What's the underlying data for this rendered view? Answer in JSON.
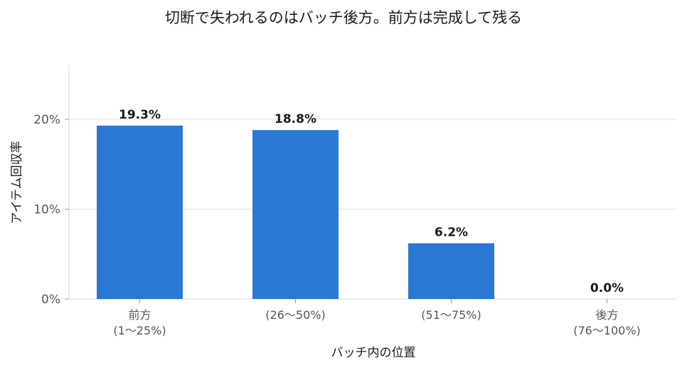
{
  "chart_data": {
    "type": "bar",
    "title": "切断で失われるのはバッチ後方。前方は完成して残る",
    "xlabel": "バッチ内の位置",
    "ylabel": "アイテム回収率",
    "categories": [
      [
        "前方",
        "(1〜25%)"
      ],
      [
        "(26〜50%)"
      ],
      [
        "(51〜75%)"
      ],
      [
        "後方",
        "(76〜100%)"
      ]
    ],
    "values": [
      19.3,
      18.8,
      6.2,
      0.0
    ],
    "data_labels": [
      "19.3%",
      "18.8%",
      "6.2%",
      "0.0%"
    ],
    "yticks": [
      0,
      10,
      20
    ],
    "ytick_labels": [
      "0%",
      "10%",
      "20%"
    ],
    "ylim": [
      0,
      26
    ],
    "grid": "y",
    "bar_color": "#2a78d6"
  }
}
